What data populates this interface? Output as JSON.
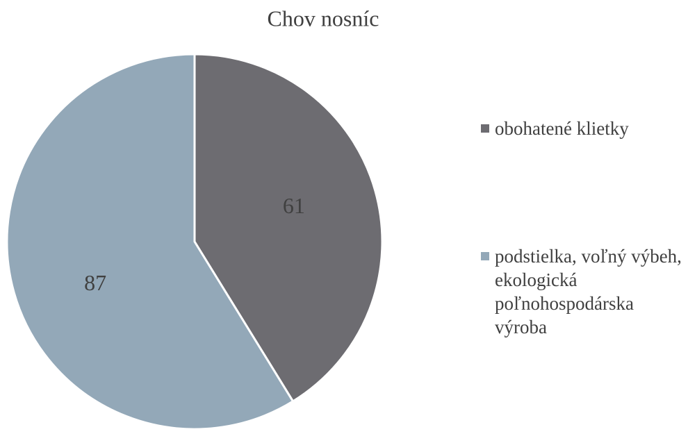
{
  "chart_data": {
    "type": "pie",
    "title": "Chov nosníc",
    "categories": [
      "obohatené klietky",
      "podstielka, voľný výbeh, ekologická poľnohospodárska výroba"
    ],
    "values": [
      61,
      87
    ],
    "colors": [
      "#6d6c71",
      "#93a8b8"
    ],
    "legend": "right"
  }
}
